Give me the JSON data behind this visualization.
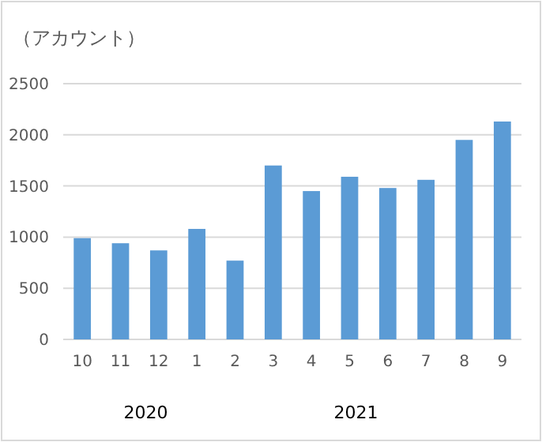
{
  "chart_data": {
    "type": "bar",
    "ylabel": "（アカウント）",
    "categories": [
      "10",
      "11",
      "12",
      "1",
      "2",
      "3",
      "4",
      "5",
      "6",
      "7",
      "8",
      "9"
    ],
    "values": [
      990,
      940,
      870,
      1080,
      770,
      1700,
      1450,
      1590,
      1480,
      1560,
      1950,
      2130
    ],
    "color": "#5b9bd5",
    "ylim": [
      0,
      2500
    ],
    "yticks": [
      0,
      500,
      1000,
      1500,
      2000,
      2500
    ],
    "grid": "y",
    "annotations": [
      "2020",
      "2021"
    ]
  }
}
